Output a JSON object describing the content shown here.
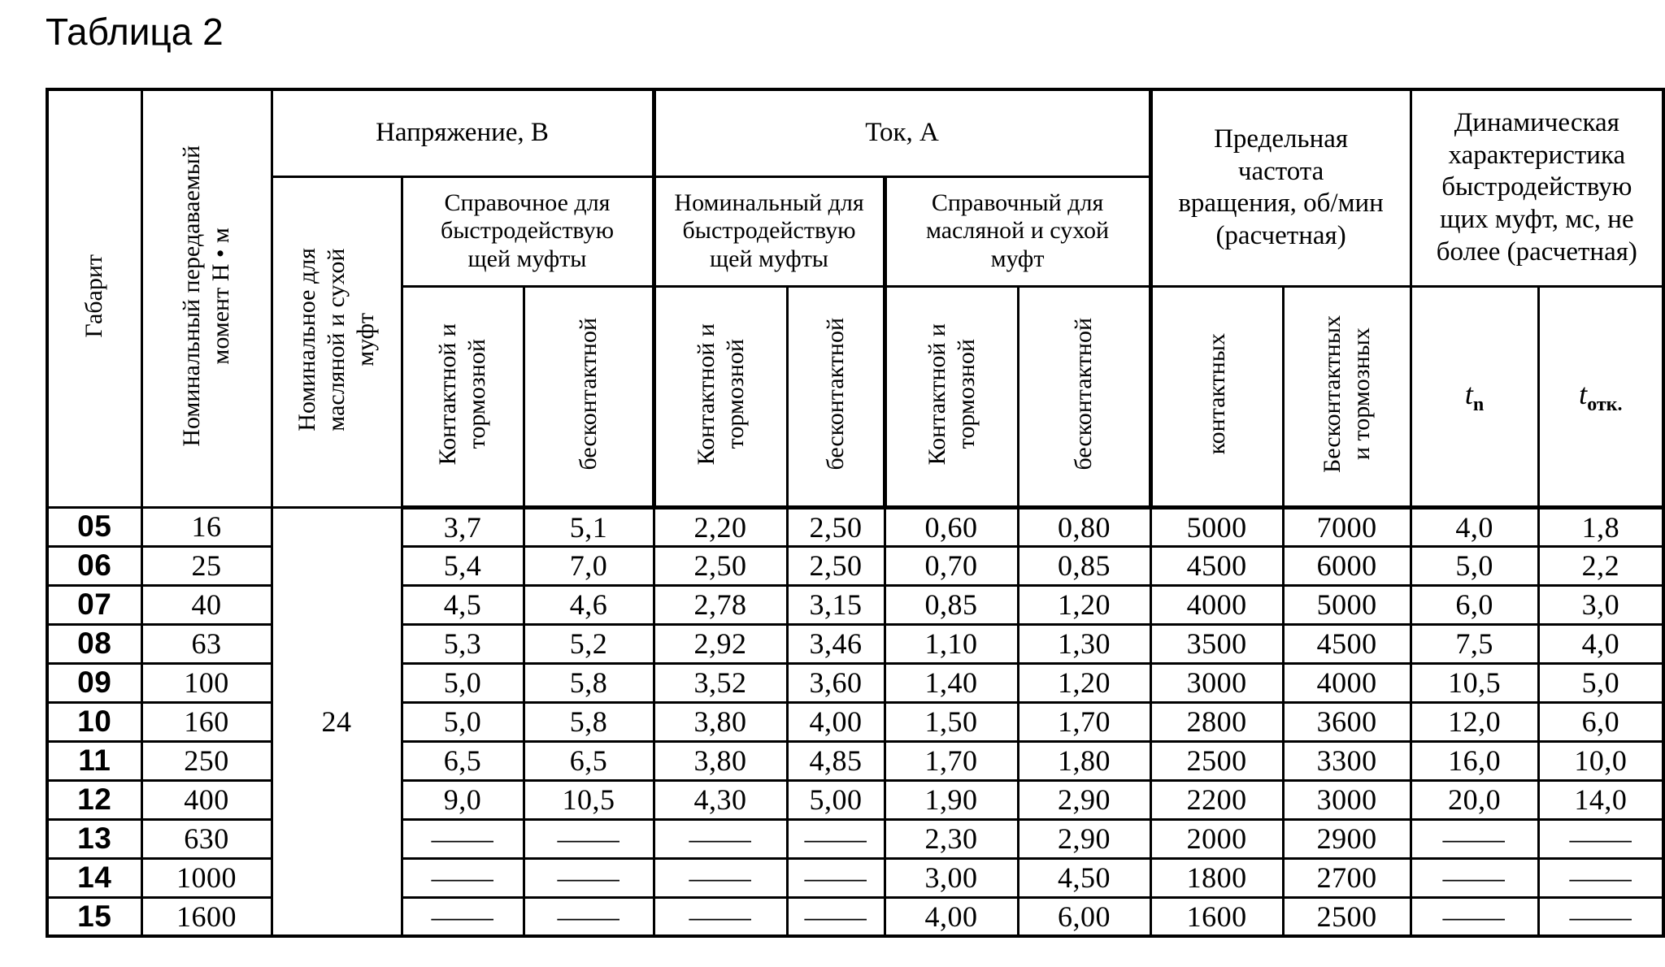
{
  "title": "Таблица 2",
  "table": {
    "header": {
      "gabarit": "Габарит",
      "moment": "Номинальный передаваемый\nмомент Н • м",
      "voltage_group": "Напряжение, В",
      "current_group": "Ток, А",
      "voltage_nominal": "Номинальное для\nмасляной и сухой\nмуфт",
      "voltage_reference": "Справочное для\nбыстродействую\nщей муфты",
      "current_nominal": "Номинальный для\nбыстродействую\nщей муфты",
      "current_reference": "Справочный для\nмасляной и сухой\nмуфт",
      "contact_brake": "Контактной и\nтормозной",
      "contactless": "бесконтактной",
      "speed_group": "Предельная\nчастота\nвращения, об/мин\n(расчетная)",
      "speed_contact": "контактных",
      "speed_contactless": "Бесконтактных\nи тормозных",
      "dynamic_group": "Динамическая\nхарактеристика\nбыстродействую\nщих муфт, мс, не\nболее (расчетная)",
      "t_on": {
        "base": "t",
        "sub": "n"
      },
      "t_off": {
        "base": "t",
        "sub": "отк."
      }
    },
    "shared_nominal_voltage": "24",
    "rows": [
      [
        "05",
        "16",
        "3,7",
        "5,1",
        "2,20",
        "2,50",
        "0,60",
        "0,80",
        "5000",
        "7000",
        "4,0",
        "1,8"
      ],
      [
        "06",
        "25",
        "5,4",
        "7,0",
        "2,50",
        "2,50",
        "0,70",
        "0,85",
        "4500",
        "6000",
        "5,0",
        "2,2"
      ],
      [
        "07",
        "40",
        "4,5",
        "4,6",
        "2,78",
        "3,15",
        "0,85",
        "1,20",
        "4000",
        "5000",
        "6,0",
        "3,0"
      ],
      [
        "08",
        "63",
        "5,3",
        "5,2",
        "2,92",
        "3,46",
        "1,10",
        "1,30",
        "3500",
        "4500",
        "7,5",
        "4,0"
      ],
      [
        "09",
        "100",
        "5,0",
        "5,8",
        "3,52",
        "3,60",
        "1,40",
        "1,20",
        "3000",
        "4000",
        "10,5",
        "5,0"
      ],
      [
        "10",
        "160",
        "5,0",
        "5,8",
        "3,80",
        "4,00",
        "1,50",
        "1,70",
        "2800",
        "3600",
        "12,0",
        "6,0"
      ],
      [
        "11",
        "250",
        "6,5",
        "6,5",
        "3,80",
        "4,85",
        "1,70",
        "1,80",
        "2500",
        "3300",
        "16,0",
        "10,0"
      ],
      [
        "12",
        "400",
        "9,0",
        "10,5",
        "4,30",
        "5,00",
        "1,90",
        "2,90",
        "2200",
        "3000",
        "20,0",
        "14,0"
      ],
      [
        "13",
        "630",
        "—",
        "—",
        "—",
        "—",
        "2,30",
        "2,90",
        "2000",
        "2900",
        "—",
        "—"
      ],
      [
        "14",
        "1000",
        "—",
        "—",
        "—",
        "—",
        "3,00",
        "4,50",
        "1800",
        "2700",
        "—",
        "—"
      ],
      [
        "15",
        "1600",
        "—",
        "—",
        "—",
        "—",
        "4,00",
        "6,00",
        "1600",
        "2500",
        "—",
        "—"
      ]
    ]
  }
}
